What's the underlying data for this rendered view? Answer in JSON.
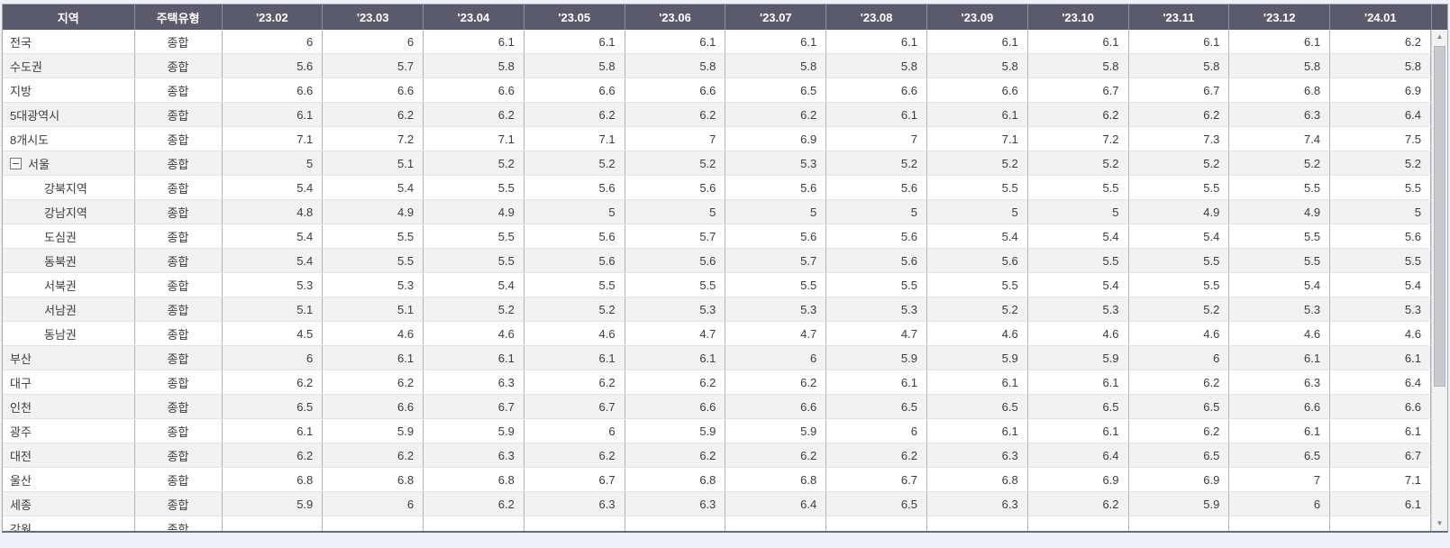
{
  "table": {
    "headers": [
      "지역",
      "주택유형",
      "'23.02",
      "'23.03",
      "'23.04",
      "'23.05",
      "'23.06",
      "'23.07",
      "'23.08",
      "'23.09",
      "'23.10",
      "'23.11",
      "'23.12",
      "'24.01"
    ],
    "rows": [
      {
        "region": "전국",
        "type": "종합",
        "indent": false,
        "collapsible": false,
        "values": [
          "6",
          "6",
          "6.1",
          "6.1",
          "6.1",
          "6.1",
          "6.1",
          "6.1",
          "6.1",
          "6.1",
          "6.1",
          "6.2"
        ]
      },
      {
        "region": "수도권",
        "type": "종합",
        "indent": false,
        "collapsible": false,
        "values": [
          "5.6",
          "5.7",
          "5.8",
          "5.8",
          "5.8",
          "5.8",
          "5.8",
          "5.8",
          "5.8",
          "5.8",
          "5.8",
          "5.8"
        ]
      },
      {
        "region": "지방",
        "type": "종합",
        "indent": false,
        "collapsible": false,
        "values": [
          "6.6",
          "6.6",
          "6.6",
          "6.6",
          "6.6",
          "6.5",
          "6.6",
          "6.6",
          "6.7",
          "6.7",
          "6.8",
          "6.9"
        ]
      },
      {
        "region": "5대광역시",
        "type": "종합",
        "indent": false,
        "collapsible": false,
        "values": [
          "6.1",
          "6.2",
          "6.2",
          "6.2",
          "6.2",
          "6.2",
          "6.1",
          "6.1",
          "6.2",
          "6.2",
          "6.3",
          "6.4"
        ]
      },
      {
        "region": "8개시도",
        "type": "종합",
        "indent": false,
        "collapsible": false,
        "values": [
          "7.1",
          "7.2",
          "7.1",
          "7.1",
          "7",
          "6.9",
          "7",
          "7.1",
          "7.2",
          "7.3",
          "7.4",
          "7.5"
        ]
      },
      {
        "region": "서울",
        "type": "종합",
        "indent": false,
        "collapsible": true,
        "values": [
          "5",
          "5.1",
          "5.2",
          "5.2",
          "5.2",
          "5.3",
          "5.2",
          "5.2",
          "5.2",
          "5.2",
          "5.2",
          "5.2"
        ]
      },
      {
        "region": "강북지역",
        "type": "종합",
        "indent": true,
        "collapsible": false,
        "values": [
          "5.4",
          "5.4",
          "5.5",
          "5.6",
          "5.6",
          "5.6",
          "5.6",
          "5.5",
          "5.5",
          "5.5",
          "5.5",
          "5.5"
        ]
      },
      {
        "region": "강남지역",
        "type": "종합",
        "indent": true,
        "collapsible": false,
        "values": [
          "4.8",
          "4.9",
          "4.9",
          "5",
          "5",
          "5",
          "5",
          "5",
          "5",
          "4.9",
          "4.9",
          "5"
        ]
      },
      {
        "region": "도심권",
        "type": "종합",
        "indent": true,
        "collapsible": false,
        "values": [
          "5.4",
          "5.5",
          "5.5",
          "5.6",
          "5.7",
          "5.6",
          "5.6",
          "5.4",
          "5.4",
          "5.4",
          "5.5",
          "5.6"
        ]
      },
      {
        "region": "동북권",
        "type": "종합",
        "indent": true,
        "collapsible": false,
        "values": [
          "5.4",
          "5.5",
          "5.5",
          "5.6",
          "5.6",
          "5.7",
          "5.6",
          "5.6",
          "5.5",
          "5.5",
          "5.5",
          "5.5"
        ]
      },
      {
        "region": "서북권",
        "type": "종합",
        "indent": true,
        "collapsible": false,
        "values": [
          "5.3",
          "5.3",
          "5.4",
          "5.5",
          "5.5",
          "5.5",
          "5.5",
          "5.5",
          "5.4",
          "5.5",
          "5.4",
          "5.4"
        ]
      },
      {
        "region": "서남권",
        "type": "종합",
        "indent": true,
        "collapsible": false,
        "values": [
          "5.1",
          "5.1",
          "5.2",
          "5.2",
          "5.3",
          "5.3",
          "5.3",
          "5.2",
          "5.3",
          "5.2",
          "5.3",
          "5.3"
        ]
      },
      {
        "region": "동남권",
        "type": "종합",
        "indent": true,
        "collapsible": false,
        "values": [
          "4.5",
          "4.6",
          "4.6",
          "4.6",
          "4.7",
          "4.7",
          "4.7",
          "4.6",
          "4.6",
          "4.6",
          "4.6",
          "4.6"
        ]
      },
      {
        "region": "부산",
        "type": "종합",
        "indent": false,
        "collapsible": false,
        "values": [
          "6",
          "6.1",
          "6.1",
          "6.1",
          "6.1",
          "6",
          "5.9",
          "5.9",
          "5.9",
          "6",
          "6.1",
          "6.1"
        ]
      },
      {
        "region": "대구",
        "type": "종합",
        "indent": false,
        "collapsible": false,
        "values": [
          "6.2",
          "6.2",
          "6.3",
          "6.2",
          "6.2",
          "6.2",
          "6.1",
          "6.1",
          "6.1",
          "6.2",
          "6.3",
          "6.4"
        ]
      },
      {
        "region": "인천",
        "type": "종합",
        "indent": false,
        "collapsible": false,
        "values": [
          "6.5",
          "6.6",
          "6.7",
          "6.7",
          "6.6",
          "6.6",
          "6.5",
          "6.5",
          "6.5",
          "6.5",
          "6.6",
          "6.6"
        ]
      },
      {
        "region": "광주",
        "type": "종합",
        "indent": false,
        "collapsible": false,
        "values": [
          "6.1",
          "5.9",
          "5.9",
          "6",
          "5.9",
          "5.9",
          "6",
          "6.1",
          "6.1",
          "6.2",
          "6.1",
          "6.1"
        ]
      },
      {
        "region": "대전",
        "type": "종합",
        "indent": false,
        "collapsible": false,
        "values": [
          "6.2",
          "6.2",
          "6.3",
          "6.2",
          "6.2",
          "6.2",
          "6.2",
          "6.3",
          "6.4",
          "6.5",
          "6.5",
          "6.7"
        ]
      },
      {
        "region": "울산",
        "type": "종합",
        "indent": false,
        "collapsible": false,
        "values": [
          "6.8",
          "6.8",
          "6.8",
          "6.7",
          "6.8",
          "6.8",
          "6.7",
          "6.8",
          "6.9",
          "6.9",
          "7",
          "7.1"
        ]
      },
      {
        "region": "세종",
        "type": "종합",
        "indent": false,
        "collapsible": false,
        "values": [
          "5.9",
          "6",
          "6.2",
          "6.3",
          "6.3",
          "6.4",
          "6.5",
          "6.3",
          "6.2",
          "5.9",
          "6",
          "6.1"
        ]
      },
      {
        "region": "강원",
        "type": "종합",
        "indent": false,
        "collapsible": false,
        "values": [
          "",
          "",
          "",
          "",
          "",
          "",
          "",
          "",
          "",
          "",
          "",
          ""
        ]
      }
    ]
  },
  "scrollbar": {
    "up_icon": "▲",
    "down_icon": "▼"
  },
  "colors": {
    "header_bg": "#5a5a6c",
    "header_text": "#ffffff",
    "row_alt_bg": "#f2f2f2",
    "body_text": "#3c3c3c",
    "grid_line_vertical": "#b2b2b2",
    "grid_line_horizontal": "#e2e2e2",
    "page_bg": "#edf0f6"
  }
}
